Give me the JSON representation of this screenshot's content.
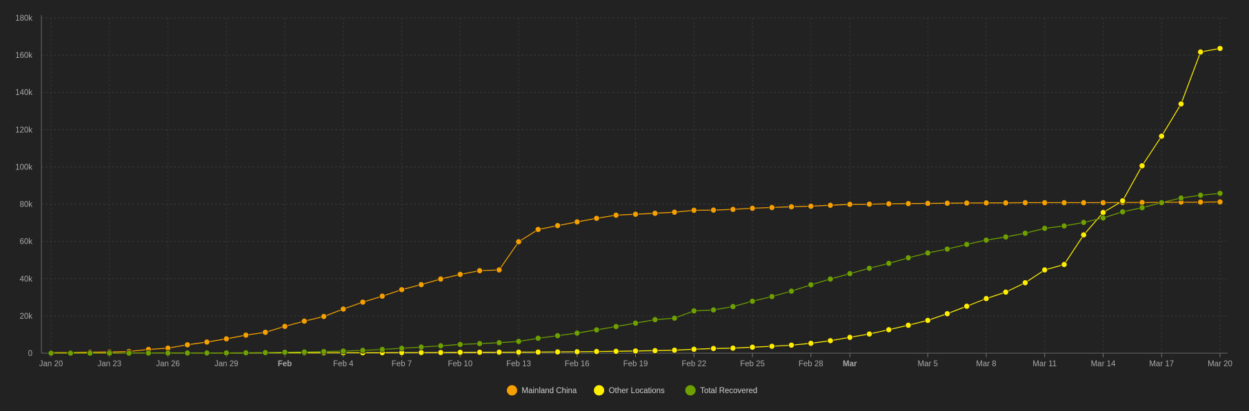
{
  "chart_data": {
    "type": "line",
    "ylim": [
      0,
      180000
    ],
    "y_ticks": [
      {
        "value": 0,
        "label": "0"
      },
      {
        "value": 20000,
        "label": "20k"
      },
      {
        "value": 40000,
        "label": "40k"
      },
      {
        "value": 60000,
        "label": "60k"
      },
      {
        "value": 80000,
        "label": "80k"
      },
      {
        "value": 100000,
        "label": "100k"
      },
      {
        "value": 120000,
        "label": "120k"
      },
      {
        "value": 140000,
        "label": "140k"
      },
      {
        "value": 160000,
        "label": "160k"
      },
      {
        "value": 180000,
        "label": "180k"
      }
    ],
    "x": [
      "Jan 20",
      "Jan 21",
      "Jan 22",
      "Jan 23",
      "Jan 24",
      "Jan 25",
      "Jan 26",
      "Jan 27",
      "Jan 28",
      "Jan 29",
      "Jan 30",
      "Jan 31",
      "Feb 1",
      "Feb 2",
      "Feb 3",
      "Feb 4",
      "Feb 5",
      "Feb 6",
      "Feb 7",
      "Feb 8",
      "Feb 9",
      "Feb 10",
      "Feb 11",
      "Feb 12",
      "Feb 13",
      "Feb 14",
      "Feb 15",
      "Feb 16",
      "Feb 17",
      "Feb 18",
      "Feb 19",
      "Feb 20",
      "Feb 21",
      "Feb 22",
      "Feb 23",
      "Feb 24",
      "Feb 25",
      "Feb 26",
      "Feb 27",
      "Feb 28",
      "Feb 29",
      "Mar 1",
      "Mar 2",
      "Mar 3",
      "Mar 4",
      "Mar 5",
      "Mar 6",
      "Mar 7",
      "Mar 8",
      "Mar 9",
      "Mar 10",
      "Mar 11",
      "Mar 12",
      "Mar 13",
      "Mar 14",
      "Mar 15",
      "Mar 16",
      "Mar 17",
      "Mar 18",
      "Mar 19",
      "Mar 20"
    ],
    "x_ticks": [
      {
        "index": 0,
        "label": "Jan 20",
        "bold": false
      },
      {
        "index": 3,
        "label": "Jan 23",
        "bold": false
      },
      {
        "index": 6,
        "label": "Jan 26",
        "bold": false
      },
      {
        "index": 9,
        "label": "Jan 29",
        "bold": false
      },
      {
        "index": 12,
        "label": "Feb",
        "bold": true
      },
      {
        "index": 15,
        "label": "Feb 4",
        "bold": false
      },
      {
        "index": 18,
        "label": "Feb 7",
        "bold": false
      },
      {
        "index": 21,
        "label": "Feb 10",
        "bold": false
      },
      {
        "index": 24,
        "label": "Feb 13",
        "bold": false
      },
      {
        "index": 27,
        "label": "Feb 16",
        "bold": false
      },
      {
        "index": 30,
        "label": "Feb 19",
        "bold": false
      },
      {
        "index": 33,
        "label": "Feb 22",
        "bold": false
      },
      {
        "index": 36,
        "label": "Feb 25",
        "bold": false
      },
      {
        "index": 39,
        "label": "Feb 28",
        "bold": false
      },
      {
        "index": 41,
        "label": "Mar",
        "bold": true
      },
      {
        "index": 45,
        "label": "Mar 5",
        "bold": false
      },
      {
        "index": 48,
        "label": "Mar 8",
        "bold": false
      },
      {
        "index": 51,
        "label": "Mar 11",
        "bold": false
      },
      {
        "index": 54,
        "label": "Mar 14",
        "bold": false
      },
      {
        "index": 57,
        "label": "Mar 17",
        "bold": false
      },
      {
        "index": 60,
        "label": "Mar 20",
        "bold": false
      }
    ],
    "grid": true,
    "legend_position": "bottom-center",
    "series": [
      {
        "name": "Mainland China",
        "color": "#f5a000",
        "values": [
          278,
          326,
          547,
          639,
          916,
          2000,
          2700,
          4500,
          6000,
          7700,
          9700,
          11200,
          14400,
          17200,
          19700,
          23700,
          27400,
          30600,
          34100,
          36800,
          39800,
          42300,
          44300,
          44700,
          59800,
          66400,
          68500,
          70500,
          72400,
          74100,
          74600,
          75100,
          75700,
          76700,
          76800,
          77200,
          77800,
          78200,
          78600,
          78900,
          79400,
          79900,
          80000,
          80200,
          80300,
          80400,
          80500,
          80600,
          80700,
          80700,
          80800,
          80800,
          80800,
          80800,
          80800,
          80900,
          80900,
          81000,
          81100,
          81100,
          81200
        ]
      },
      {
        "name": "Other Locations",
        "color": "#ffee00",
        "values": [
          4,
          6,
          8,
          14,
          25,
          40,
          57,
          64,
          87,
          105,
          118,
          153,
          173,
          183,
          188,
          212,
          227,
          265,
          317,
          343,
          361,
          457,
          476,
          523,
          538,
          595,
          685,
          780,
          896,
          999,
          1200,
          1350,
          1600,
          2100,
          2500,
          2700,
          3200,
          3700,
          4300,
          5300,
          6700,
          8500,
          10300,
          12600,
          15000,
          17600,
          21200,
          25200,
          29300,
          32800,
          37800,
          44700,
          47600,
          63500,
          75500,
          81800,
          100600,
          116500,
          133800,
          161700,
          163600
        ]
      },
      {
        "name": "Total Recovered",
        "color": "#6ea000",
        "values": [
          0,
          0,
          28,
          34,
          39,
          52,
          61,
          107,
          126,
          143,
          222,
          284,
          472,
          623,
          852,
          1124,
          1487,
          2011,
          2616,
          3244,
          3946,
          4683,
          5150,
          5600,
          6300,
          8000,
          9400,
          10800,
          12500,
          14300,
          16100,
          18000,
          18800,
          22700,
          23200,
          25000,
          27900,
          30400,
          33300,
          36700,
          39800,
          42700,
          45600,
          48200,
          51200,
          53800,
          55900,
          58400,
          60700,
          62400,
          64400,
          67000,
          68300,
          70200,
          72600,
          75900,
          78100,
          80800,
          83300,
          84800,
          85800
        ]
      }
    ]
  }
}
